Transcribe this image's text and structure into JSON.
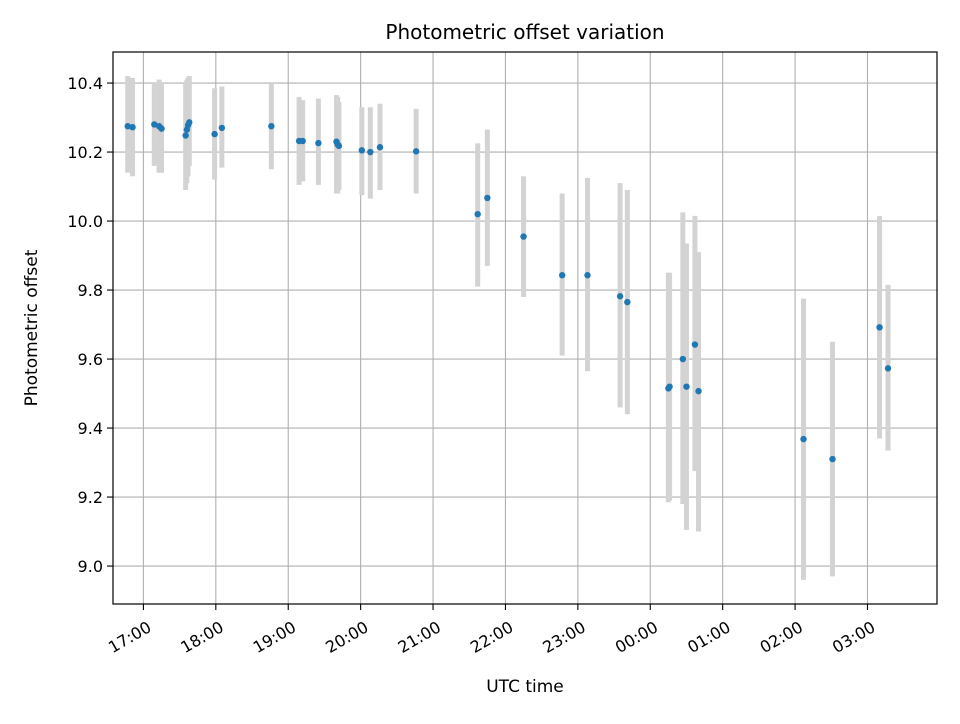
{
  "chart_data": {
    "type": "scatter",
    "title": "Photometric offset variation",
    "xlabel": "UTC time",
    "ylabel": "Photometric offset",
    "ylim": [
      8.89,
      10.49
    ],
    "xlim_hours": [
      16.58,
      27.96
    ],
    "grid": true,
    "colors": {
      "points": "#1f77b4",
      "errorbars": "#d3d3d3",
      "grid": "#b0b0b0"
    },
    "x_ticks": [
      {
        "label": "17:00",
        "hour": 17
      },
      {
        "label": "18:00",
        "hour": 18
      },
      {
        "label": "19:00",
        "hour": 19
      },
      {
        "label": "20:00",
        "hour": 20
      },
      {
        "label": "21:00",
        "hour": 21
      },
      {
        "label": "22:00",
        "hour": 22
      },
      {
        "label": "23:00",
        "hour": 23
      },
      {
        "label": "00:00",
        "hour": 24
      },
      {
        "label": "01:00",
        "hour": 25
      },
      {
        "label": "02:00",
        "hour": 26
      },
      {
        "label": "03:00",
        "hour": 27
      }
    ],
    "y_ticks": [
      {
        "label": "9.0",
        "value": 9.0
      },
      {
        "label": "9.2",
        "value": 9.2
      },
      {
        "label": "9.4",
        "value": 9.4
      },
      {
        "label": "9.6",
        "value": 9.6
      },
      {
        "label": "9.8",
        "value": 9.8
      },
      {
        "label": "10.0",
        "value": 10.0
      },
      {
        "label": "10.2",
        "value": 10.2
      },
      {
        "label": "10.4",
        "value": 10.4
      }
    ],
    "points": [
      {
        "time": "16:47",
        "y": 10.275,
        "lo": 10.14,
        "hi": 10.42
      },
      {
        "time": "16:51",
        "y": 10.272,
        "lo": 10.13,
        "hi": 10.415
      },
      {
        "time": "17:09",
        "y": 10.28,
        "lo": 10.16,
        "hi": 10.4
      },
      {
        "time": "17:13",
        "y": 10.275,
        "lo": 10.14,
        "hi": 10.41
      },
      {
        "time": "17:15",
        "y": 10.268,
        "lo": 10.14,
        "hi": 10.4
      },
      {
        "time": "17:35",
        "y": 10.248,
        "lo": 10.09,
        "hi": 10.4
      },
      {
        "time": "17:36",
        "y": 10.265,
        "lo": 10.11,
        "hi": 10.41
      },
      {
        "time": "17:37",
        "y": 10.278,
        "lo": 10.13,
        "hi": 10.415
      },
      {
        "time": "17:38",
        "y": 10.286,
        "lo": 10.16,
        "hi": 10.42
      },
      {
        "time": "17:59",
        "y": 10.252,
        "lo": 10.12,
        "hi": 10.385
      },
      {
        "time": "18:05",
        "y": 10.27,
        "lo": 10.155,
        "hi": 10.39
      },
      {
        "time": "18:46",
        "y": 10.275,
        "lo": 10.15,
        "hi": 10.4
      },
      {
        "time": "19:09",
        "y": 10.232,
        "lo": 10.105,
        "hi": 10.36
      },
      {
        "time": "19:12",
        "y": 10.232,
        "lo": 10.115,
        "hi": 10.35
      },
      {
        "time": "19:25",
        "y": 10.226,
        "lo": 10.105,
        "hi": 10.355
      },
      {
        "time": "19:40",
        "y": 10.23,
        "lo": 10.08,
        "hi": 10.365
      },
      {
        "time": "19:41",
        "y": 10.222,
        "lo": 10.08,
        "hi": 10.36
      },
      {
        "time": "19:42",
        "y": 10.218,
        "lo": 10.09,
        "hi": 10.345
      },
      {
        "time": "20:01",
        "y": 10.205,
        "lo": 10.075,
        "hi": 10.33
      },
      {
        "time": "20:08",
        "y": 10.2,
        "lo": 10.065,
        "hi": 10.33
      },
      {
        "time": "20:16",
        "y": 10.214,
        "lo": 10.09,
        "hi": 10.34
      },
      {
        "time": "20:46",
        "y": 10.202,
        "lo": 10.08,
        "hi": 10.325
      },
      {
        "time": "21:37",
        "y": 10.02,
        "lo": 9.81,
        "hi": 10.225
      },
      {
        "time": "21:45",
        "y": 10.067,
        "lo": 9.87,
        "hi": 10.265
      },
      {
        "time": "22:15",
        "y": 9.955,
        "lo": 9.78,
        "hi": 10.13
      },
      {
        "time": "22:47",
        "y": 9.843,
        "lo": 9.61,
        "hi": 10.08
      },
      {
        "time": "23:08",
        "y": 9.843,
        "lo": 9.565,
        "hi": 10.125
      },
      {
        "time": "23:35",
        "y": 9.782,
        "lo": 9.46,
        "hi": 10.11
      },
      {
        "time": "23:41",
        "y": 9.765,
        "lo": 9.44,
        "hi": 10.09
      },
      {
        "time": "00:15",
        "y": 9.515,
        "lo": 9.185,
        "hi": 9.85
      },
      {
        "time": "00:16",
        "y": 9.52,
        "lo": 9.19,
        "hi": 9.85
      },
      {
        "time": "00:27",
        "y": 9.6,
        "lo": 9.18,
        "hi": 10.025
      },
      {
        "time": "00:30",
        "y": 9.52,
        "lo": 9.105,
        "hi": 9.935
      },
      {
        "time": "00:37",
        "y": 9.642,
        "lo": 9.275,
        "hi": 10.015
      },
      {
        "time": "00:40",
        "y": 9.507,
        "lo": 9.1,
        "hi": 9.91
      },
      {
        "time": "02:07",
        "y": 9.368,
        "lo": 8.96,
        "hi": 9.775
      },
      {
        "time": "02:31",
        "y": 9.31,
        "lo": 8.97,
        "hi": 9.65
      },
      {
        "time": "03:10",
        "y": 9.692,
        "lo": 9.37,
        "hi": 10.015
      },
      {
        "time": "03:17",
        "y": 9.573,
        "lo": 9.335,
        "hi": 9.815
      }
    ]
  }
}
